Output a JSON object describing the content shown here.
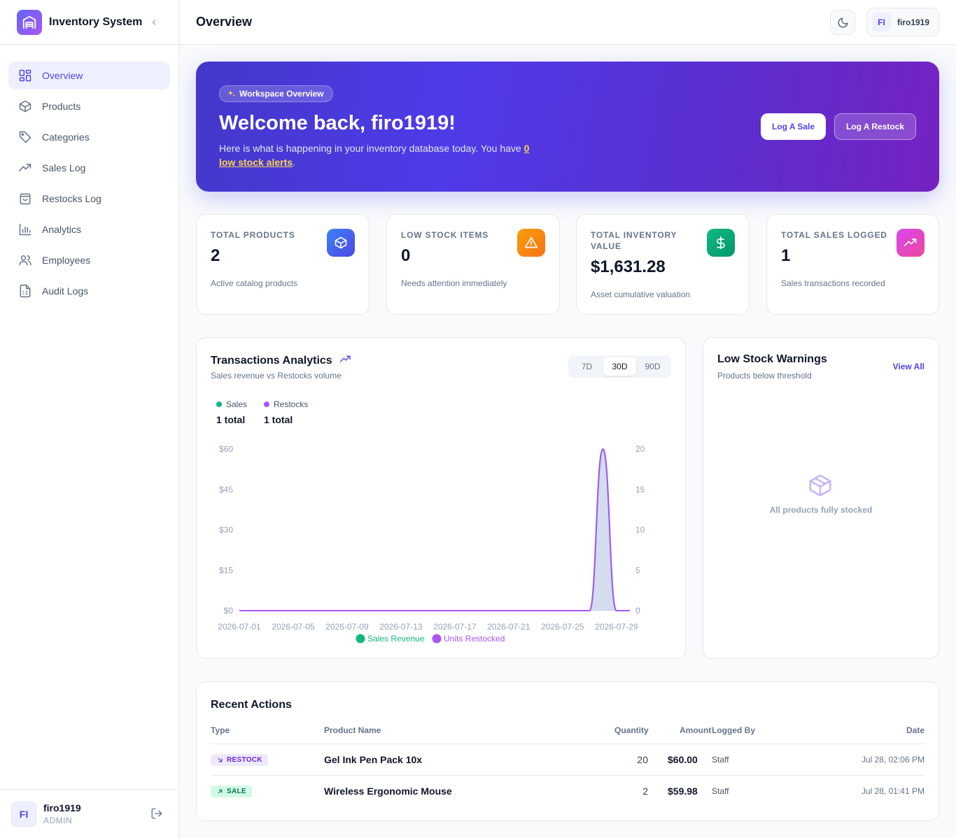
{
  "app": {
    "name": "Inventory System"
  },
  "sidebar": {
    "items": [
      {
        "label": "Overview",
        "icon": "grid-icon"
      },
      {
        "label": "Products",
        "icon": "box-icon"
      },
      {
        "label": "Categories",
        "icon": "tag-icon"
      },
      {
        "label": "Sales Log",
        "icon": "trending-up-icon"
      },
      {
        "label": "Restocks Log",
        "icon": "shopping-bag-icon"
      },
      {
        "label": "Analytics",
        "icon": "bar-chart-icon"
      },
      {
        "label": "Employees",
        "icon": "users-icon"
      },
      {
        "label": "Audit Logs",
        "icon": "file-text-icon"
      }
    ],
    "user": {
      "initials": "FI",
      "name": "firo1919",
      "role": "ADMIN"
    }
  },
  "header": {
    "title": "Overview",
    "user_initials": "FI",
    "username": "firo1919"
  },
  "hero": {
    "badge": "Workspace Overview",
    "title": "Welcome back, firo1919!",
    "text_before": "Here is what is happening in your inventory database today. You have ",
    "alert_link": "0 low stock alerts",
    "text_after": ".",
    "log_sale_label": "Log A Sale",
    "log_restock_label": "Log A Restock"
  },
  "stats": [
    {
      "label": "TOTAL PRODUCTS",
      "value": "2",
      "sub": "Active catalog products",
      "icon": "cube-icon",
      "color": "#4f46e5"
    },
    {
      "label": "LOW STOCK ITEMS",
      "value": "0",
      "sub": "Needs attention immediately",
      "icon": "alert-triangle-icon",
      "color": "#f97316"
    },
    {
      "label": "TOTAL INVENTORY VALUE",
      "value": "$1,631.28",
      "sub": "Asset cumulative valuation",
      "icon": "dollar-icon",
      "color": "#10b981"
    },
    {
      "label": "TOTAL SALES LOGGED",
      "value": "1",
      "sub": "Sales transactions recorded",
      "icon": "trending-up-icon",
      "color": "#d946ef"
    }
  ],
  "analytics": {
    "title": "Transactions Analytics",
    "subtitle": "Sales revenue vs Restocks volume",
    "ranges": [
      "7D",
      "30D",
      "90D"
    ],
    "active_range": "30D",
    "sales_label": "Sales",
    "sales_total": "1 total",
    "restocks_label": "Restocks",
    "restocks_total": "1 total"
  },
  "chart_data": {
    "type": "area",
    "x": [
      "2026-07-01",
      "2026-07-02",
      "2026-07-03",
      "2026-07-04",
      "2026-07-05",
      "2026-07-06",
      "2026-07-07",
      "2026-07-08",
      "2026-07-09",
      "2026-07-10",
      "2026-07-11",
      "2026-07-12",
      "2026-07-13",
      "2026-07-14",
      "2026-07-15",
      "2026-07-16",
      "2026-07-17",
      "2026-07-18",
      "2026-07-19",
      "2026-07-20",
      "2026-07-21",
      "2026-07-22",
      "2026-07-23",
      "2026-07-24",
      "2026-07-25",
      "2026-07-26",
      "2026-07-27",
      "2026-07-28",
      "2026-07-29",
      "2026-07-30"
    ],
    "x_tick_labels": [
      "2026-07-01",
      "2026-07-05",
      "2026-07-09",
      "2026-07-13",
      "2026-07-17",
      "2026-07-21",
      "2026-07-25",
      "2026-07-29"
    ],
    "series": [
      {
        "name": "Sales Revenue",
        "axis": "left",
        "color": "#10b981",
        "values": [
          0,
          0,
          0,
          0,
          0,
          0,
          0,
          0,
          0,
          0,
          0,
          0,
          0,
          0,
          0,
          0,
          0,
          0,
          0,
          0,
          0,
          0,
          0,
          0,
          0,
          0,
          0,
          59.98,
          0,
          0
        ]
      },
      {
        "name": "Units Restocked",
        "axis": "right",
        "color": "#a855f7",
        "values": [
          0,
          0,
          0,
          0,
          0,
          0,
          0,
          0,
          0,
          0,
          0,
          0,
          0,
          0,
          0,
          0,
          0,
          0,
          0,
          0,
          0,
          0,
          0,
          0,
          0,
          0,
          0,
          20,
          0,
          0
        ]
      }
    ],
    "y_left": {
      "ticks": [
        "$0",
        "$15",
        "$30",
        "$45",
        "$60"
      ],
      "ylim": [
        0,
        60
      ]
    },
    "y_right": {
      "ticks": [
        "0",
        "5",
        "10",
        "15",
        "20"
      ],
      "ylim": [
        0,
        20
      ]
    },
    "legend_position": "bottom",
    "grid": false
  },
  "low_stock": {
    "title": "Low Stock Warnings",
    "subtitle": "Products below threshold",
    "view_all": "View All",
    "empty_text": "All products fully stocked"
  },
  "recent": {
    "title": "Recent Actions",
    "columns": [
      "Type",
      "Product Name",
      "Quantity",
      "Amount",
      "Logged By",
      "Date"
    ],
    "rows": [
      {
        "type": "RESTOCK",
        "product": "Gel Ink Pen Pack 10x",
        "quantity": "20",
        "amount": "$60.00",
        "logged_by": "Staff",
        "date": "Jul 28, 02:06 PM"
      },
      {
        "type": "SALE",
        "product": "Wireless Ergonomic Mouse",
        "quantity": "2",
        "amount": "$59.98",
        "logged_by": "Staff",
        "date": "Jul 28, 01:41 PM"
      }
    ]
  }
}
